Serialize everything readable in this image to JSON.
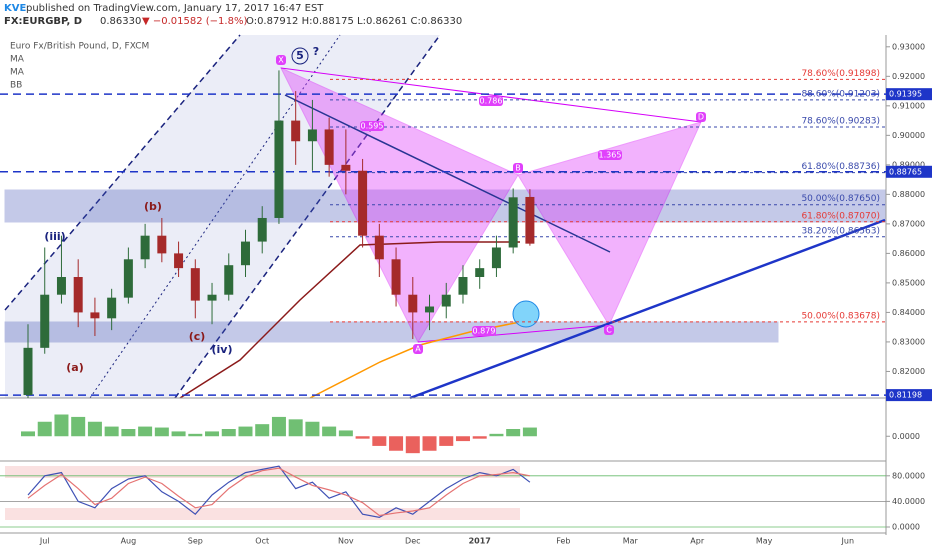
{
  "header": {
    "publisher": "KVE",
    "published": "published on TradingView.com, January 17, 2017 16:47 EST",
    "symbol": "FX:EURGBP, D",
    "last": "0.86330",
    "change": "▼ −0.01582 (−1.8%)",
    "ohlc": "O:0.87912 H:0.88175 L:0.86261 C:0.86330"
  },
  "chart_data": [
    {
      "type": "candlestick",
      "legend": [
        "Euro Fx/British Pound, D, FXCM",
        "MA",
        "MA",
        "BB"
      ],
      "categories": [
        null,
        "Jul",
        null,
        null,
        null,
        null,
        "Aug",
        null,
        null,
        null,
        "Sep",
        null,
        null,
        null,
        "Oct",
        null,
        null,
        null,
        null,
        "Nov",
        null,
        null,
        null,
        "Dec",
        null,
        null,
        null,
        "2017",
        null,
        null,
        null,
        null,
        "Feb",
        null,
        null,
        null,
        "Mar",
        null,
        null,
        null,
        "Apr",
        null,
        null,
        null,
        "May",
        null,
        null,
        null,
        null,
        "Jun",
        null,
        null
      ],
      "open": [
        0.812,
        0.828,
        0.846,
        0.852,
        0.84,
        0.838,
        0.845,
        0.858,
        0.866,
        0.86,
        0.855,
        0.844,
        0.846,
        0.856,
        0.864,
        0.872,
        0.905,
        0.898,
        0.902,
        0.89,
        0.888,
        0.866,
        0.858,
        0.846,
        0.84,
        0.842,
        0.846,
        0.852,
        0.855,
        0.862,
        0.87912,
        null,
        null,
        null,
        null,
        null,
        null,
        null,
        null,
        null,
        null,
        null,
        null,
        null,
        null,
        null,
        null,
        null,
        null,
        null,
        null,
        null
      ],
      "high": [
        0.836,
        0.862,
        0.866,
        0.858,
        0.845,
        0.848,
        0.862,
        0.87,
        0.872,
        0.864,
        0.858,
        0.85,
        0.86,
        0.868,
        0.876,
        0.922,
        0.915,
        0.912,
        0.906,
        0.902,
        0.892,
        0.87,
        0.862,
        0.852,
        0.846,
        0.85,
        0.856,
        0.858,
        0.866,
        0.882,
        0.88175,
        null,
        null,
        null,
        null,
        null,
        null,
        null,
        null,
        null,
        null,
        null,
        null,
        null,
        null,
        null,
        null,
        null,
        null,
        null,
        null,
        null
      ],
      "low": [
        0.811,
        0.826,
        0.843,
        0.835,
        0.832,
        0.834,
        0.843,
        0.855,
        0.857,
        0.852,
        0.838,
        0.836,
        0.844,
        0.852,
        0.86,
        0.87,
        0.89,
        0.888,
        0.886,
        0.88,
        0.862,
        0.852,
        0.842,
        0.831,
        0.834,
        0.838,
        0.843,
        0.848,
        0.852,
        0.86,
        0.86261,
        null,
        null,
        null,
        null,
        null,
        null,
        null,
        null,
        null,
        null,
        null,
        null,
        null,
        null,
        null,
        null,
        null,
        null,
        null,
        null,
        null
      ],
      "close": [
        0.828,
        0.846,
        0.852,
        0.84,
        0.838,
        0.845,
        0.858,
        0.866,
        0.86,
        0.855,
        0.844,
        0.846,
        0.856,
        0.864,
        0.872,
        0.905,
        0.898,
        0.902,
        0.89,
        0.888,
        0.866,
        0.858,
        0.846,
        0.84,
        0.842,
        0.846,
        0.852,
        0.855,
        0.862,
        0.879,
        0.8633,
        null,
        null,
        null,
        null,
        null,
        null,
        null,
        null,
        null,
        null,
        null,
        null,
        null,
        null,
        null,
        null,
        null,
        null,
        null,
        null,
        null
      ],
      "colors": {
        "up": "#2e6b3a",
        "down": "#a52a2a"
      },
      "ylim": [
        0.811,
        0.934
      ],
      "yticks": [
        {
          "value": 0.93,
          "label": "0.93000"
        },
        {
          "value": 0.92,
          "label": "0.92000"
        },
        {
          "value": 0.91,
          "label": "0.91000"
        },
        {
          "value": 0.9,
          "label": "0.90000"
        },
        {
          "value": 0.89,
          "label": "0.89000"
        },
        {
          "value": 0.88,
          "label": "0.88000"
        },
        {
          "value": 0.87,
          "label": "0.87000"
        },
        {
          "value": 0.86,
          "label": "0.86000"
        },
        {
          "value": 0.85,
          "label": "0.85000"
        },
        {
          "value": 0.84,
          "label": "0.84000"
        },
        {
          "value": 0.83,
          "label": "0.83000"
        },
        {
          "value": 0.82,
          "label": "0.82000"
        }
      ],
      "levels": [
        0.91395,
        0.88765,
        0.81198
      ],
      "fib_levels": [
        {
          "value": 0.91898,
          "label": "78.60%(0.91898)",
          "color": "#e53935"
        },
        {
          "value": 0.91203,
          "label": "88.60%(0.91203)",
          "color": "#3949ab"
        },
        {
          "value": 0.90283,
          "label": "78.60%(0.90283)",
          "color": "#3949ab"
        },
        {
          "value": 0.88736,
          "label": "61.80%(0.88736)",
          "color": "#3949ab"
        },
        {
          "value": 0.8765,
          "label": "50.00%(0.87650)",
          "color": "#3949ab"
        },
        {
          "value": 0.8707,
          "label": "61.80%(0.87070)",
          "color": "#e53935"
        },
        {
          "value": 0.86563,
          "label": "38.20%(0.86563)",
          "color": "#3949ab"
        },
        {
          "value": 0.83678,
          "label": "50.00%(0.83678)",
          "color": "#e53935"
        }
      ],
      "annotations": [
        "(iii)",
        "(a)",
        "(b)",
        "(c)",
        "(iv)",
        "5",
        "?",
        "X",
        "A",
        "B",
        "C",
        "D",
        "0.595",
        "0.786",
        "1.365",
        "0.879"
      ]
    },
    {
      "type": "bar",
      "ylim": [
        -0.0045,
        0.0075
      ],
      "yticks": [
        {
          "value": 0,
          "label": "0.0000"
        }
      ],
      "colors": {
        "up": "#4caf50",
        "down": "#e53935"
      },
      "values": [
        0.001,
        0.003,
        0.0045,
        0.004,
        0.003,
        0.002,
        0.0015,
        0.002,
        0.0018,
        0.001,
        0.0005,
        0.001,
        0.0015,
        0.002,
        0.0025,
        0.004,
        0.0035,
        0.003,
        0.002,
        0.0012,
        -0.0005,
        -0.002,
        -0.003,
        -0.0035,
        -0.003,
        -0.002,
        -0.001,
        -0.0005,
        0.0005,
        0.0015,
        0.0018
      ]
    },
    {
      "type": "line",
      "ylim": [
        0,
        100
      ],
      "yticks": [
        {
          "value": 80,
          "label": "80.0000"
        },
        {
          "value": 40,
          "label": "40.0000"
        },
        {
          "value": 0,
          "label": "0.0000"
        }
      ],
      "series": [
        {
          "color": "#3f51b5",
          "values": [
            50,
            80,
            85,
            40,
            30,
            60,
            75,
            80,
            55,
            40,
            20,
            50,
            70,
            85,
            90,
            95,
            60,
            70,
            45,
            55,
            20,
            15,
            30,
            20,
            40,
            60,
            75,
            85,
            80,
            90,
            70
          ]
        },
        {
          "color": "#e57373",
          "values": [
            45,
            65,
            82,
            60,
            35,
            45,
            68,
            78,
            68,
            48,
            30,
            35,
            60,
            78,
            88,
            92,
            78,
            65,
            58,
            50,
            38,
            18,
            22,
            25,
            30,
            50,
            68,
            80,
            82,
            85,
            80
          ]
        }
      ]
    }
  ]
}
